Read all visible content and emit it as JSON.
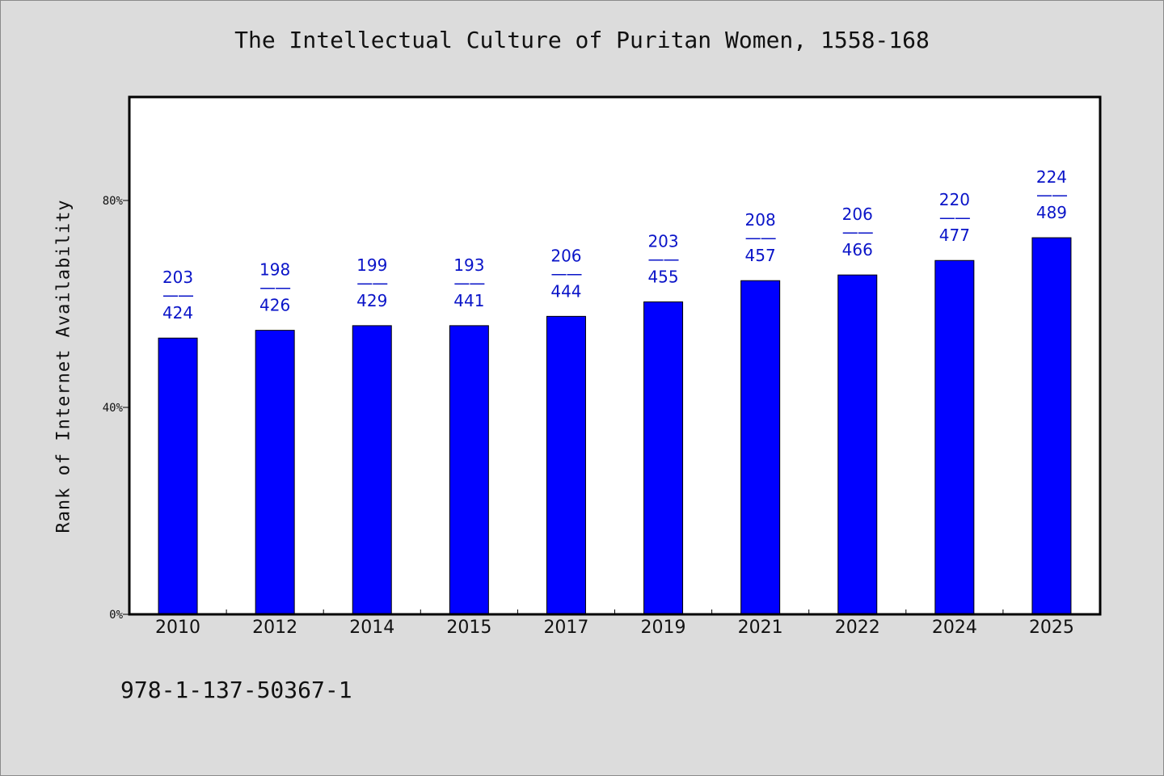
{
  "chart_data": {
    "type": "bar",
    "title": "The Intellectual Culture of Puritan Women, 1558-168",
    "xlabel": "",
    "ylabel": "Rank of Internet Availability",
    "ylim": [
      0,
      1
    ],
    "yticks": [
      {
        "value": 0,
        "label": "0%"
      },
      {
        "value": 0.4,
        "label": "40%"
      },
      {
        "value": 0.8,
        "label": "80%"
      }
    ],
    "categories": [
      "2010",
      "2012",
      "2014",
      "2015",
      "2017",
      "2019",
      "2021",
      "2022",
      "2024",
      "2025"
    ],
    "values": [
      0.534,
      0.549,
      0.558,
      0.558,
      0.576,
      0.604,
      0.645,
      0.656,
      0.684,
      0.728
    ],
    "data_labels": [
      {
        "top": "203",
        "mid": "——",
        "bottom": "424"
      },
      {
        "top": "198",
        "mid": "——",
        "bottom": "426"
      },
      {
        "top": "199",
        "mid": "——",
        "bottom": "429"
      },
      {
        "top": "193",
        "mid": "——",
        "bottom": "441"
      },
      {
        "top": "206",
        "mid": "——",
        "bottom": "444"
      },
      {
        "top": "203",
        "mid": "——",
        "bottom": "455"
      },
      {
        "top": "208",
        "mid": "——",
        "bottom": "457"
      },
      {
        "top": "206",
        "mid": "——",
        "bottom": "466"
      },
      {
        "top": "220",
        "mid": "——",
        "bottom": "477"
      },
      {
        "top": "224",
        "mid": "——",
        "bottom": "489"
      }
    ],
    "bar_color": "#0000ff",
    "label_color": "#0a14c8",
    "grid": false,
    "legend": "none"
  },
  "footer": {
    "isbn": "978-1-137-50367-1"
  }
}
